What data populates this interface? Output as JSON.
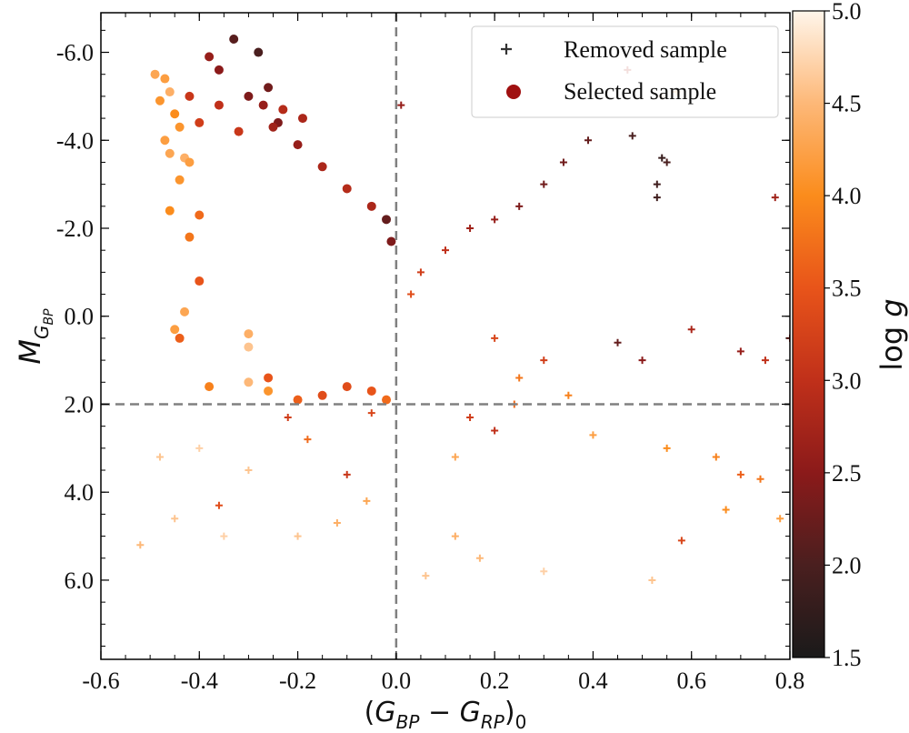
{
  "chart_data": {
    "type": "scatter",
    "title": "",
    "xlabel": "(G_BP − G_RP)_0",
    "xlabel_parts": {
      "paren_open": "(",
      "g1": "G",
      "sub1": "BP",
      "minus": " − ",
      "g2": "G",
      "sub2": "RP",
      "paren_close": ")",
      "sub0": "0"
    },
    "ylabel": "M_GBP",
    "ylabel_parts": {
      "m": "M",
      "sub": "G",
      "subsub": "BP"
    },
    "colorbar_label": "log g",
    "colorbar_label_parts": {
      "log": "log",
      "g": "g"
    },
    "xlim": [
      -0.6,
      0.8
    ],
    "ylim": [
      7.8,
      -6.9
    ],
    "y_inverted": true,
    "x_ticks": [
      -0.6,
      -0.4,
      -0.2,
      0.0,
      0.2,
      0.4,
      0.6,
      0.8
    ],
    "x_tick_labels": [
      "-0.6",
      "-0.4",
      "-0.2",
      "0.0",
      "0.2",
      "0.4",
      "0.6",
      "0.8"
    ],
    "y_ticks": [
      -6.0,
      -4.0,
      -2.0,
      0.0,
      2.0,
      4.0,
      6.0
    ],
    "y_tick_labels": [
      "-6.0",
      "-4.0",
      "-2.0",
      "0.0",
      "2.0",
      "4.0",
      "6.0"
    ],
    "colorbar_range": [
      1.5,
      5.0
    ],
    "colorbar_ticks": [
      1.5,
      2.0,
      2.5,
      3.0,
      3.5,
      4.0,
      4.5,
      5.0
    ],
    "colorbar_tick_labels": [
      "1.5",
      "2.0",
      "2.5",
      "3.0",
      "3.5",
      "4.0",
      "4.5",
      "5.0"
    ],
    "colormap": [
      "#1a1a1a",
      "#4a1f1f",
      "#8b1a1a",
      "#c0301a",
      "#e8541a",
      "#fb8c1c",
      "#fdb878",
      "#fff5ea"
    ],
    "reference_lines": [
      {
        "orientation": "vertical",
        "value": 0.0,
        "style": "dashed",
        "color": "#808080"
      },
      {
        "orientation": "horizontal",
        "value": 2.0,
        "style": "dashed",
        "color": "#808080"
      }
    ],
    "legend": {
      "placement": "top-right",
      "entries": [
        {
          "label": "Removed sample",
          "marker": "plus",
          "color": "#333333"
        },
        {
          "label": "Selected sample",
          "marker": "circle",
          "color": "#a01010"
        }
      ]
    },
    "series": [
      {
        "name": "Selected sample",
        "marker": "circle",
        "points_xy_logg": [
          [
            -0.33,
            -6.3,
            2.1
          ],
          [
            -0.28,
            -6.0,
            2.0
          ],
          [
            -0.38,
            -5.9,
            2.6
          ],
          [
            -0.36,
            -5.6,
            2.5
          ],
          [
            -0.26,
            -5.2,
            2.3
          ],
          [
            -0.3,
            -5.0,
            2.4
          ],
          [
            -0.27,
            -4.8,
            2.6
          ],
          [
            -0.23,
            -4.7,
            2.9
          ],
          [
            -0.24,
            -4.4,
            2.4
          ],
          [
            -0.19,
            -4.5,
            2.8
          ],
          [
            -0.4,
            -4.4,
            3.2
          ],
          [
            -0.32,
            -4.2,
            3.1
          ],
          [
            -0.36,
            -4.8,
            3.0
          ],
          [
            -0.42,
            -5.0,
            3.1
          ],
          [
            -0.47,
            -5.4,
            4.2
          ],
          [
            -0.49,
            -5.5,
            4.3
          ],
          [
            -0.46,
            -5.1,
            4.4
          ],
          [
            -0.48,
            -4.9,
            4.1
          ],
          [
            -0.45,
            -4.6,
            4.0
          ],
          [
            -0.44,
            -4.3,
            4.1
          ],
          [
            -0.47,
            -4.0,
            4.2
          ],
          [
            -0.46,
            -3.7,
            4.3
          ],
          [
            -0.43,
            -3.6,
            4.4
          ],
          [
            -0.42,
            -3.5,
            4.2
          ],
          [
            -0.44,
            -3.1,
            4.1
          ],
          [
            -0.46,
            -2.4,
            4.0
          ],
          [
            -0.4,
            -2.3,
            3.7
          ],
          [
            -0.42,
            -1.8,
            3.8
          ],
          [
            -0.44,
            0.5,
            3.6
          ],
          [
            -0.4,
            -0.8,
            3.5
          ],
          [
            -0.45,
            0.3,
            4.2
          ],
          [
            -0.43,
            -0.1,
            4.3
          ],
          [
            -0.38,
            1.6,
            3.9
          ],
          [
            -0.3,
            0.4,
            4.4
          ],
          [
            -0.3,
            0.7,
            4.6
          ],
          [
            -0.3,
            1.5,
            4.5
          ],
          [
            -0.26,
            1.7,
            4.1
          ],
          [
            -0.26,
            1.4,
            3.5
          ],
          [
            -0.2,
            1.9,
            3.6
          ],
          [
            -0.15,
            1.8,
            3.4
          ],
          [
            -0.1,
            1.6,
            3.4
          ],
          [
            -0.05,
            1.7,
            3.5
          ],
          [
            -0.02,
            1.9,
            3.7
          ],
          [
            -0.02,
            -2.2,
            2.2
          ],
          [
            -0.01,
            -1.7,
            2.4
          ],
          [
            -0.05,
            -2.5,
            2.8
          ],
          [
            -0.1,
            -2.9,
            2.9
          ],
          [
            -0.15,
            -3.4,
            2.8
          ],
          [
            -0.2,
            -3.9,
            2.6
          ],
          [
            -0.25,
            -4.3,
            2.7
          ]
        ]
      },
      {
        "name": "Removed sample",
        "marker": "plus",
        "points_xy_logg": [
          [
            0.01,
            -4.8,
            2.6
          ],
          [
            0.47,
            -5.6,
            2.8
          ],
          [
            0.54,
            -5.0,
            4.6
          ],
          [
            0.57,
            -5.1,
            4.4
          ],
          [
            0.48,
            -4.1,
            2.0
          ],
          [
            0.54,
            -3.6,
            1.8
          ],
          [
            0.55,
            -3.5,
            2.0
          ],
          [
            0.53,
            -3.0,
            1.9
          ],
          [
            0.53,
            -2.7,
            1.9
          ],
          [
            0.77,
            -2.7,
            2.7
          ],
          [
            0.39,
            -4.0,
            2.2
          ],
          [
            0.34,
            -3.5,
            2.3
          ],
          [
            0.3,
            -3.0,
            2.3
          ],
          [
            0.25,
            -2.5,
            2.4
          ],
          [
            0.2,
            -2.2,
            2.6
          ],
          [
            0.15,
            -2.0,
            2.7
          ],
          [
            0.1,
            -1.5,
            3.0
          ],
          [
            0.05,
            -1.0,
            3.2
          ],
          [
            0.03,
            -0.5,
            3.4
          ],
          [
            0.6,
            0.3,
            2.8
          ],
          [
            0.7,
            0.8,
            2.6
          ],
          [
            0.8,
            0.5,
            2.7
          ],
          [
            0.75,
            1.0,
            3.0
          ],
          [
            0.45,
            0.6,
            2.2
          ],
          [
            0.5,
            1.0,
            2.5
          ],
          [
            0.2,
            0.5,
            3.3
          ],
          [
            0.3,
            1.0,
            3.2
          ],
          [
            0.25,
            1.4,
            3.8
          ],
          [
            0.35,
            1.8,
            3.9
          ],
          [
            0.15,
            2.3,
            3.2
          ],
          [
            0.2,
            2.6,
            3.0
          ],
          [
            0.4,
            2.7,
            4.2
          ],
          [
            0.55,
            3.0,
            4.0
          ],
          [
            0.65,
            3.2,
            3.9
          ],
          [
            0.7,
            3.6,
            3.6
          ],
          [
            0.74,
            3.7,
            3.8
          ],
          [
            0.67,
            4.4,
            4.0
          ],
          [
            0.78,
            4.6,
            4.2
          ],
          [
            0.58,
            5.1,
            3.3
          ],
          [
            0.52,
            6.0,
            4.6
          ],
          [
            0.3,
            5.8,
            4.7
          ],
          [
            0.17,
            5.5,
            4.5
          ],
          [
            0.12,
            5.0,
            4.4
          ],
          [
            0.06,
            5.9,
            4.6
          ],
          [
            -0.06,
            4.2,
            4.3
          ],
          [
            -0.12,
            4.7,
            4.4
          ],
          [
            -0.2,
            5.0,
            4.6
          ],
          [
            -0.36,
            4.3,
            3.4
          ],
          [
            -0.45,
            4.6,
            4.6
          ],
          [
            -0.52,
            5.2,
            4.5
          ],
          [
            -0.4,
            3.0,
            4.7
          ],
          [
            -0.3,
            3.5,
            4.6
          ],
          [
            -0.35,
            5.0,
            4.7
          ],
          [
            -0.48,
            3.2,
            4.6
          ],
          [
            -0.05,
            2.2,
            3.3
          ],
          [
            -0.1,
            3.6,
            3.1
          ],
          [
            -0.18,
            2.8,
            3.7
          ],
          [
            -0.22,
            2.3,
            3.2
          ],
          [
            0.12,
            3.2,
            4.3
          ],
          [
            0.24,
            2.0,
            3.7
          ]
        ]
      }
    ]
  }
}
